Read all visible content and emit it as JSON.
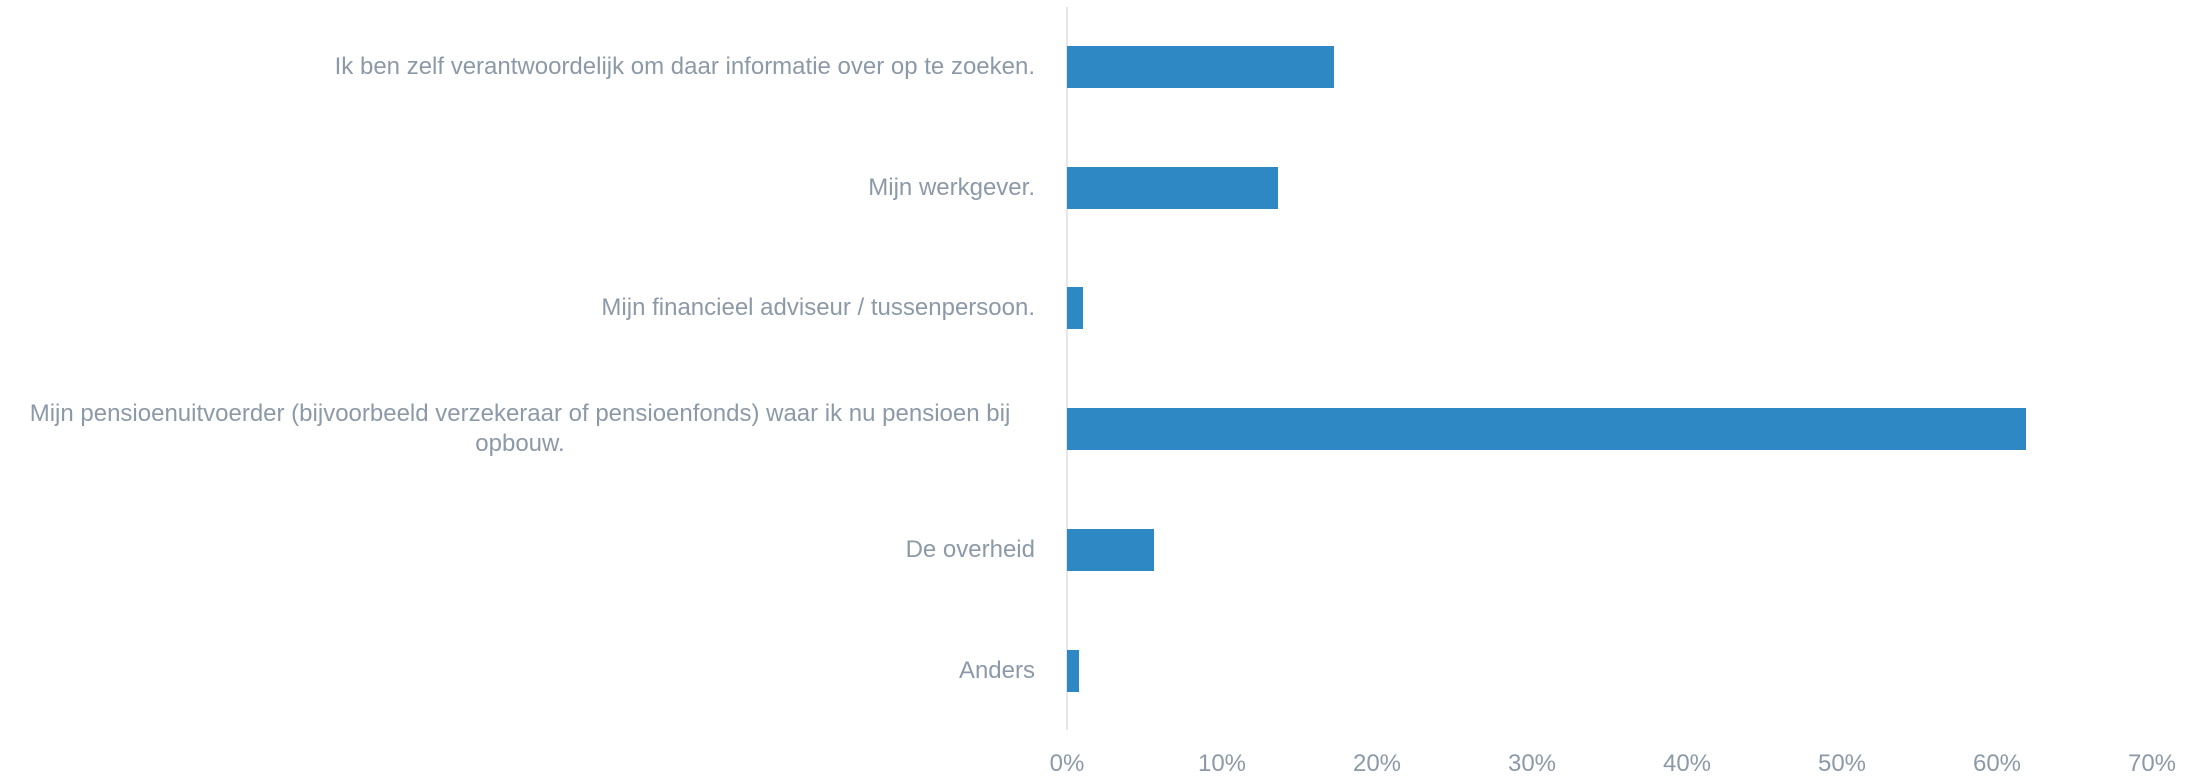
{
  "chart_data": {
    "type": "bar",
    "orientation": "horizontal",
    "categories": [
      "Ik ben zelf verantwoordelijk om daar informatie over op te zoeken.",
      "Mijn werkgever.",
      "Mijn financieel adviseur / tussenpersoon.",
      "Mijn pensioenuitvoerder (bijvoorbeeld verzekeraar of pensioenfonds) waar ik nu pensioen bij opbouw.",
      "De overheid",
      "Anders"
    ],
    "values": [
      17.2,
      13.6,
      1.0,
      61.9,
      5.6,
      0.8
    ],
    "color": "#2e88c4",
    "xlim": [
      0,
      70
    ],
    "xticks": [
      {
        "value": 0,
        "label": "0%"
      },
      {
        "value": 10,
        "label": "10%"
      },
      {
        "value": 20,
        "label": "20%"
      },
      {
        "value": 30,
        "label": "30%"
      },
      {
        "value": 40,
        "label": "40%"
      },
      {
        "value": 50,
        "label": "50%"
      },
      {
        "value": 60,
        "label": "60%"
      },
      {
        "value": 70,
        "label": "70%"
      }
    ]
  }
}
